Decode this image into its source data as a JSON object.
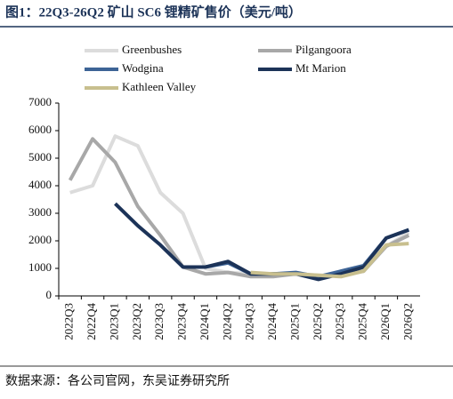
{
  "chart_data": {
    "type": "line",
    "title": "图1：22Q3-26Q2 矿山 SC6 锂精矿售价（美元/吨）",
    "source": "数据来源：各公司官网，东吴证券研究所",
    "categories": [
      "2022Q3",
      "2022Q4",
      "2023Q1",
      "2023Q2",
      "2023Q3",
      "2023Q4",
      "2024Q1",
      "2024Q2",
      "2024Q3",
      "2024Q4",
      "2025Q1",
      "2025Q2",
      "2025Q3",
      "2025Q4",
      "2026Q1",
      "2026Q2"
    ],
    "series": [
      {
        "name": "Greenbushes",
        "color": "#dcdcdc",
        "values": [
          3750,
          4000,
          5800,
          5450,
          3750,
          3000,
          1000,
          850,
          800,
          800,
          800,
          750,
          750,
          900,
          1800,
          2300
        ]
      },
      {
        "name": "Pilgangoora",
        "color": "#a8a8a8",
        "values": [
          4200,
          5700,
          4850,
          3250,
          2200,
          1050,
          800,
          850,
          700,
          700,
          800,
          700,
          750,
          900,
          1800,
          2200
        ]
      },
      {
        "name": "Wodgina",
        "color": "#3d6496",
        "values": [
          null,
          null,
          null,
          null,
          null,
          1050,
          1050,
          1200,
          800,
          800,
          850,
          700,
          900,
          1100,
          2100,
          2400
        ]
      },
      {
        "name": "Mt Marion",
        "color": "#1c3358",
        "values": [
          null,
          null,
          3350,
          2550,
          1850,
          1050,
          1050,
          1250,
          800,
          800,
          800,
          600,
          800,
          1050,
          2100,
          2400
        ]
      },
      {
        "name": "Kathleen Valley",
        "color": "#c8bf8e",
        "values": [
          null,
          null,
          null,
          null,
          null,
          null,
          null,
          null,
          850,
          800,
          800,
          750,
          700,
          900,
          1850,
          1900
        ]
      }
    ],
    "ylim": [
      0,
      7000
    ],
    "yticks": [
      0,
      1000,
      2000,
      3000,
      4000,
      5000,
      6000,
      7000
    ]
  }
}
